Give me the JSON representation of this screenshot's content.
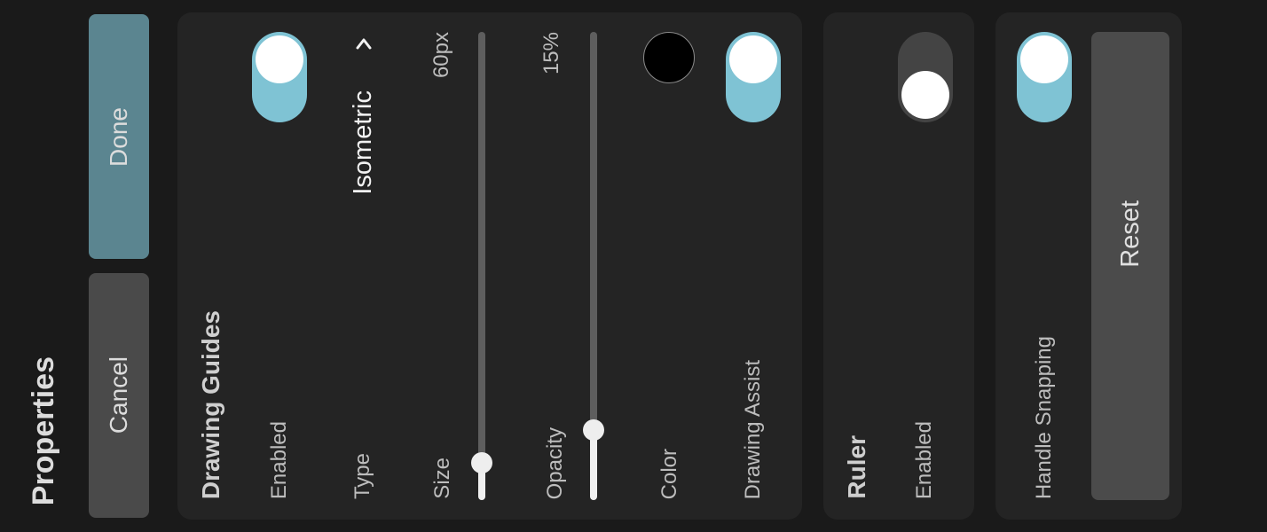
{
  "sidebar": {
    "title": "Properties",
    "done_label": "Done",
    "cancel_label": "Cancel"
  },
  "drawing_guides": {
    "title": "Drawing Guides",
    "enabled_label": "Enabled",
    "enabled": true,
    "type_label": "Type",
    "type_value": "Isometric",
    "type_icon": "chevron-icon",
    "size_label": "Size",
    "size_value": "60px",
    "size_slider_fraction": 0.08,
    "opacity_label": "Opacity",
    "opacity_value": "15%",
    "opacity_slider_fraction": 0.15,
    "color_label": "Color",
    "color_value": "#000000",
    "drawing_assist_label": "Drawing Assist",
    "drawing_assist": true
  },
  "ruler": {
    "title": "Ruler",
    "enabled_label": "Enabled",
    "enabled": false
  },
  "misc": {
    "handle_snapping_label": "Handle Snapping",
    "handle_snapping": true,
    "reset_label": "Reset"
  },
  "colors": {
    "accent": "#7fc3d4",
    "done_button": "#5b8590",
    "toggle_off": "#444444",
    "panel": "#242424",
    "background": "#1a1a1a"
  }
}
